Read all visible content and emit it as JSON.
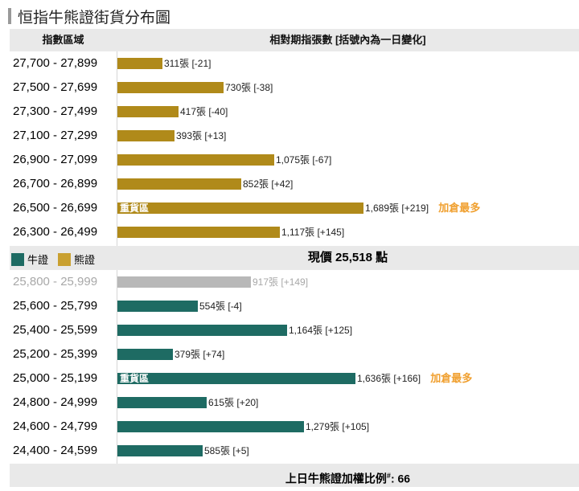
{
  "title": "恒指牛熊證街貨分布圖",
  "header": {
    "range_label": "指數區域",
    "bars_label": "相對期指張數 [括號內為一日變化]"
  },
  "legend": {
    "bull": {
      "label": "牛證",
      "color": "#1e6b63"
    },
    "bear": {
      "label": "熊證",
      "color": "#c9a030"
    }
  },
  "price_label": "現價 25,518 點",
  "footer": {
    "text": "上日牛熊證加權比例",
    "sup": "#",
    "value": ": 66"
  },
  "colors": {
    "bear_bar": "#b08a1a",
    "bull_bar": "#1e6b63",
    "ref_bar": "#b8b8b8",
    "note": "#f0a030"
  },
  "chart_data": {
    "type": "bar",
    "title": "恒指牛熊證街貨分布圖",
    "xlabel": "相對期指張數 [括號內為一日變化]",
    "ylabel": "指數區域",
    "current_price": 25518,
    "max_scale": 1689,
    "bear": [
      {
        "range": "27,700 - 27,899",
        "value": 311,
        "change": "-21",
        "text": "311張 [-21]"
      },
      {
        "range": "27,500 - 27,699",
        "value": 730,
        "change": "-38",
        "text": "730張 [-38]"
      },
      {
        "range": "27,300 - 27,499",
        "value": 417,
        "change": "-40",
        "text": "417張 [-40]"
      },
      {
        "range": "27,100 - 27,299",
        "value": 393,
        "change": "+13",
        "text": "393張 [+13]"
      },
      {
        "range": "26,900 - 27,099",
        "value": 1075,
        "change": "-67",
        "text": "1,075張 [-67]"
      },
      {
        "range": "26,700 - 26,899",
        "value": 852,
        "change": "+42",
        "text": "852張 [+42]"
      },
      {
        "range": "26,500 - 26,699",
        "value": 1689,
        "change": "+219",
        "text": "1,689張 [+219]",
        "inner_label": "重貨區",
        "note": "加倉最多"
      },
      {
        "range": "26,300 - 26,499",
        "value": 1117,
        "change": "+145",
        "text": "1,117張 [+145]"
      }
    ],
    "bull": [
      {
        "range": "25,800 - 25,999",
        "value": 917,
        "change": "+149",
        "text": "917張 [+149]",
        "grey": true
      },
      {
        "range": "25,600 - 25,799",
        "value": 554,
        "change": "-4",
        "text": "554張 [-4]"
      },
      {
        "range": "25,400 - 25,599",
        "value": 1164,
        "change": "+125",
        "text": "1,164張 [+125]"
      },
      {
        "range": "25,200 - 25,399",
        "value": 379,
        "change": "+74",
        "text": "379張 [+74]"
      },
      {
        "range": "25,000 - 25,199",
        "value": 1636,
        "change": "+166",
        "text": "1,636張 [+166]",
        "inner_label": "重貨區",
        "note": "加倉最多"
      },
      {
        "range": "24,800 - 24,999",
        "value": 615,
        "change": "+20",
        "text": "615張 [+20]"
      },
      {
        "range": "24,600 - 24,799",
        "value": 1279,
        "change": "+105",
        "text": "1,279張 [+105]"
      },
      {
        "range": "24,400 - 24,599",
        "value": 585,
        "change": "+5",
        "text": "585張 [+5]"
      }
    ]
  }
}
